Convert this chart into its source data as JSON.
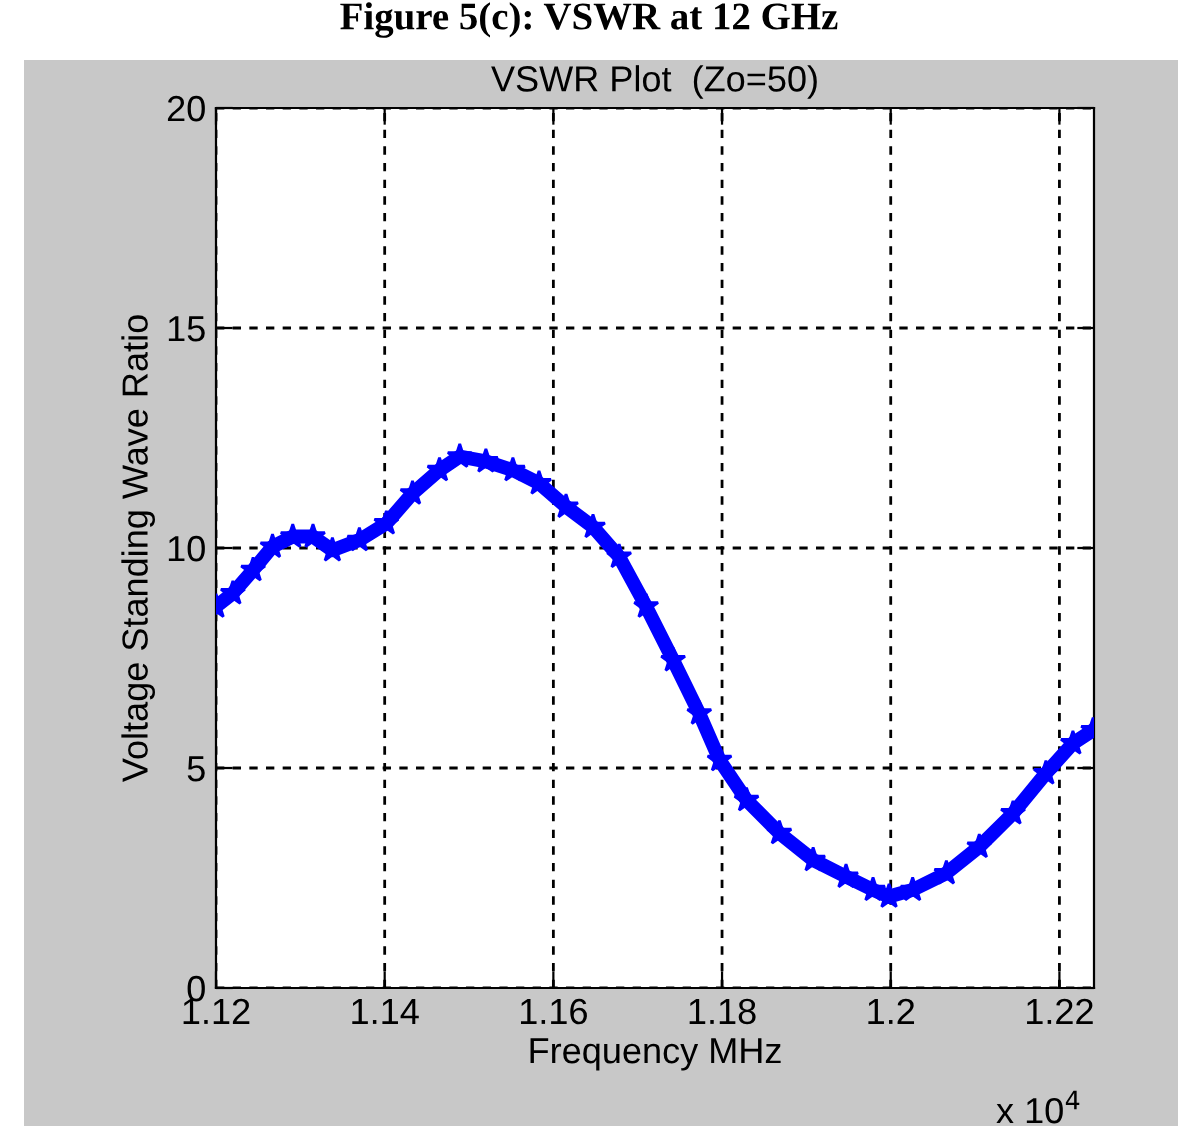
{
  "chart_data": {
    "type": "line",
    "title": "VSWR Plot  (Zo=50)",
    "xlabel": "Frequency MHz",
    "ylabel": "Voltage Standing Wave Ratio",
    "annotations": [
      "Figure 5(c): VSWR at 12 GHz",
      "x 10$^{4}$"
    ],
    "x": [
      1.12,
      1.122,
      1.1244,
      1.1267,
      1.1291,
      1.1315,
      1.1338,
      1.137,
      1.1402,
      1.1433,
      1.1465,
      1.1489,
      1.152,
      1.1552,
      1.1583,
      1.1615,
      1.1647,
      1.1678,
      1.171,
      1.1742,
      1.1773,
      1.1797,
      1.1829,
      1.1868,
      1.1908,
      1.1947,
      1.1979,
      1.1998,
      1.2026,
      1.2066,
      1.2105,
      1.2145,
      1.2184,
      1.2216,
      1.224
    ],
    "series": [
      {
        "color": "#0000ff",
        "values": [
          8.67,
          8.97,
          9.5,
          10.03,
          10.26,
          10.26,
          9.95,
          10.18,
          10.56,
          11.24,
          11.77,
          12.08,
          11.97,
          11.77,
          11.47,
          10.94,
          10.48,
          9.8,
          8.67,
          7.45,
          6.24,
          5.18,
          4.27,
          3.52,
          2.91,
          2.53,
          2.23,
          2.08,
          2.23,
          2.61,
          3.21,
          3.97,
          4.88,
          5.56,
          5.86
        ]
      }
    ],
    "xlim": [
      1.12,
      1.2241
    ],
    "xticks": [
      1.12,
      1.14,
      1.16,
      1.18,
      1.2,
      1.22
    ],
    "ylim": [
      0,
      20
    ],
    "yticks": [
      0,
      5,
      10,
      15,
      20
    ],
    "grid": true,
    "marker": "star",
    "line_style": "solid"
  }
}
